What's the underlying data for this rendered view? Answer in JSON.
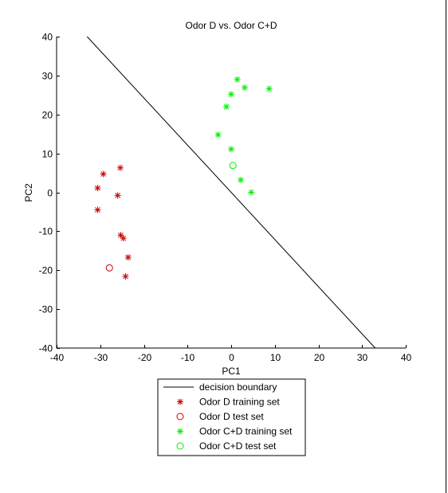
{
  "chart_data": {
    "type": "scatter",
    "title": "Odor D vs. Odor C+D",
    "xlabel": "PC1",
    "ylabel": "PC2",
    "xlim": [
      -40,
      40
    ],
    "ylim": [
      -40,
      40
    ],
    "xticks": [
      -40,
      -30,
      -20,
      -10,
      0,
      10,
      20,
      30,
      40
    ],
    "yticks": [
      -40,
      -30,
      -20,
      -10,
      0,
      10,
      20,
      30,
      40
    ],
    "grid": false,
    "legend_position": "below",
    "decision_boundary": {
      "name": "decision boundary",
      "color": "#000000",
      "points": [
        [
          -33,
          40
        ],
        [
          33,
          -40
        ]
      ]
    },
    "series": [
      {
        "name": "Odor D training set",
        "marker": "asterisk",
        "color": "#cc0000",
        "points": [
          [
            -29.3,
            4.7
          ],
          [
            -25.4,
            6.3
          ],
          [
            -30.6,
            1.1
          ],
          [
            -26.0,
            -0.8
          ],
          [
            -30.6,
            -4.5
          ],
          [
            -25.3,
            -11.0
          ],
          [
            -24.7,
            -11.8
          ],
          [
            -23.6,
            -16.7
          ],
          [
            -24.2,
            -21.6
          ]
        ]
      },
      {
        "name": "Odor D test set",
        "marker": "circle",
        "color": "#cc0000",
        "points": [
          [
            -27.9,
            -19.4
          ]
        ]
      },
      {
        "name": "Odor C+D training set",
        "marker": "asterisk",
        "color": "#00ee00",
        "points": [
          [
            1.4,
            29.0
          ],
          [
            3.1,
            26.9
          ],
          [
            8.7,
            26.6
          ],
          [
            0.0,
            25.2
          ],
          [
            -1.1,
            22.0
          ],
          [
            -3.0,
            14.8
          ],
          [
            0.0,
            11.1
          ],
          [
            2.2,
            3.2
          ],
          [
            4.6,
            0.0
          ]
        ]
      },
      {
        "name": "Odor C+D test set",
        "marker": "circle",
        "color": "#00ee00",
        "points": [
          [
            0.4,
            6.9
          ]
        ]
      }
    ]
  }
}
